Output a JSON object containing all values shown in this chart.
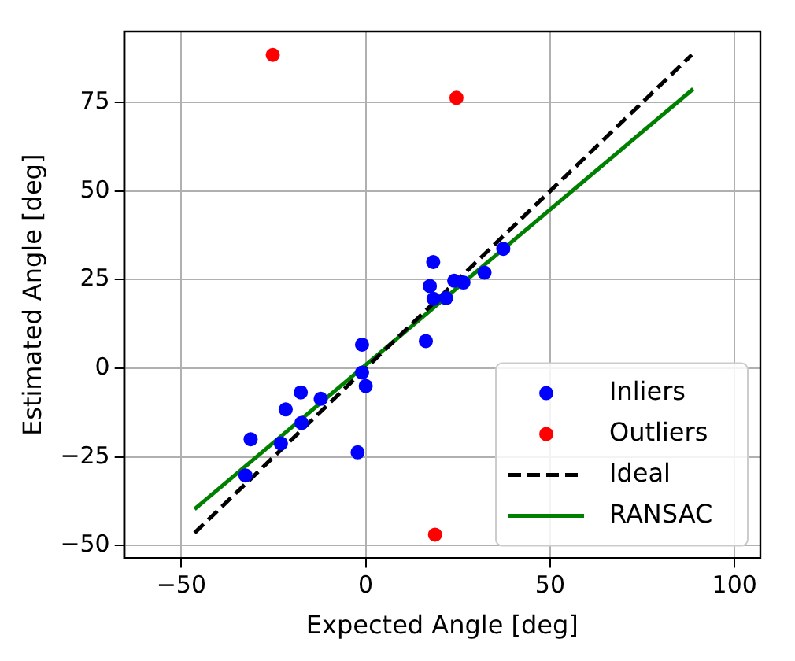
{
  "chart_data": {
    "type": "scatter",
    "xlabel": "Expected Angle [deg]",
    "ylabel": "Estimated Angle [deg]",
    "xlim": [
      -65.5,
      107
    ],
    "ylim": [
      -53.6,
      95
    ],
    "xticks": [
      -50,
      0,
      50,
      100
    ],
    "yticks": [
      -50,
      -25,
      0,
      25,
      50,
      75
    ],
    "grid": true,
    "legend": "bottom right",
    "series": [
      {
        "name": "Inliers",
        "marker": "circle",
        "color": "#0000ff",
        "x": [
          37.3,
          32.2,
          26.5,
          24.0,
          21.8,
          18.4,
          18.3,
          17.4,
          16.3,
          -1.0,
          -1.0,
          0.0,
          -17.6,
          -12.2,
          -21.7,
          -17.4,
          -23.0,
          -31.2,
          -32.6,
          -2.2
        ],
        "values": [
          33.7,
          27.0,
          24.2,
          24.7,
          19.8,
          19.6,
          30.0,
          23.2,
          7.7,
          6.7,
          -1.2,
          -5.0,
          -6.8,
          -8.6,
          -11.6,
          -15.4,
          -21.2,
          -20.0,
          -30.2,
          -23.7
        ]
      },
      {
        "name": "Outliers",
        "marker": "circle",
        "color": "#ff0000",
        "x": [
          -25.2,
          24.6,
          18.8
        ],
        "values": [
          88.4,
          76.3,
          -46.9
        ]
      },
      {
        "name": "Ideal",
        "type": "line",
        "marker": "none",
        "line_style": "dashed",
        "color": "#000000",
        "x": [
          -46.4,
          88.4
        ],
        "values": [
          -46.4,
          88.4
        ]
      },
      {
        "name": "RANSAC",
        "type": "line",
        "marker": "none",
        "line_style": "solid",
        "color": "#008000",
        "x": [
          -46.4,
          88.8
        ],
        "values": [
          -39.7,
          78.8
        ]
      }
    ]
  }
}
